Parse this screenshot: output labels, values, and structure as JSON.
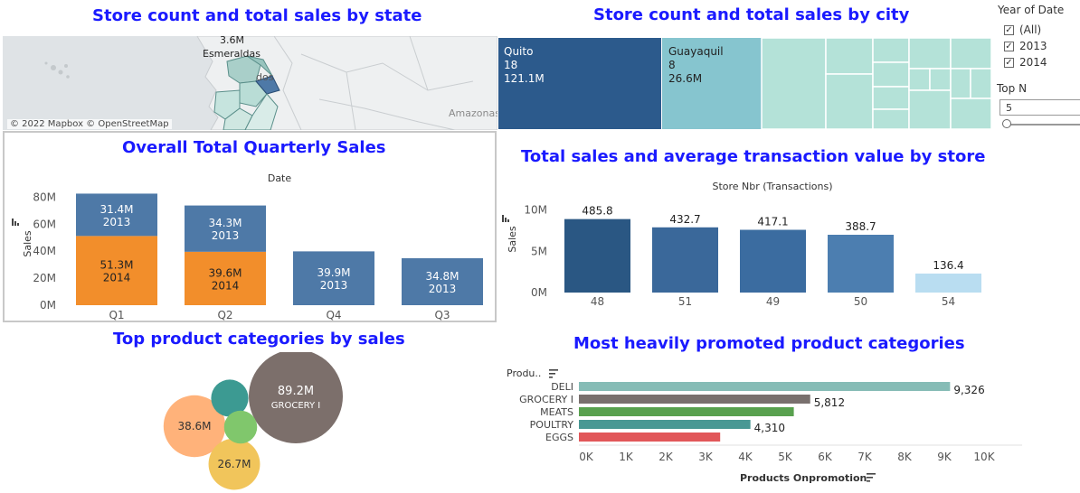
{
  "titles": {
    "state": "Store count and total sales by state",
    "city": "Store count and total sales by city",
    "quarterly": "Overall Total Quarterly Sales",
    "store": "Total sales and average transaction value by store",
    "categories": "Top product categories by sales",
    "promoted": "Most heavily promoted product categories"
  },
  "map": {
    "attribution": "© 2022 Mapbox © OpenStreetMap",
    "labels": {
      "value": "3.6M",
      "state": "Esmeraldas",
      "partial": "dos",
      "region": "Amazonas"
    }
  },
  "filters": {
    "year_title": "Year of Date",
    "year_options": [
      {
        "label": "(All)",
        "checked": true
      },
      {
        "label": "2013",
        "checked": true
      },
      {
        "label": "2014",
        "checked": true
      }
    ],
    "topn_title": "Top N",
    "topn_value": "5"
  },
  "icons": {
    "sort_icon": "sort-icon",
    "checkbox_icon": "checkbox-checked-icon"
  },
  "chart_data": [
    {
      "id": "city-treemap",
      "type": "heatmap",
      "title": "Store count and total sales by city",
      "cells": [
        {
          "city": "Quito",
          "stores": "18",
          "sales": "121.1M"
        },
        {
          "city": "Guayaquil",
          "stores": "8",
          "sales": "26.6M"
        }
      ]
    },
    {
      "id": "quarterly-sales",
      "type": "bar",
      "title": "Overall Total Quarterly Sales",
      "xlabel": "Date",
      "ylabel": "Sales",
      "categories": [
        "Q1",
        "Q2",
        "Q4",
        "Q3"
      ],
      "yticks": [
        "0M",
        "20M",
        "40M",
        "60M",
        "80M"
      ],
      "ylim": [
        0,
        85
      ],
      "series": [
        {
          "name": "2014",
          "values": [
            51.3,
            39.6,
            0,
            0
          ],
          "labels": [
            "51.3M",
            "39.6M",
            "",
            ""
          ],
          "color": "#f28e2b"
        },
        {
          "name": "2013",
          "values": [
            31.4,
            34.3,
            39.9,
            34.8
          ],
          "labels": [
            "31.4M",
            "34.3M",
            "39.9M",
            "34.8M"
          ],
          "color": "#4e79a7"
        }
      ]
    },
    {
      "id": "store-sales",
      "type": "bar",
      "title": "Total sales and average transaction value by store",
      "xlabel": "Store Nbr (Transactions)",
      "ylabel": "Sales",
      "categories": [
        "48",
        "51",
        "49",
        "50",
        "54"
      ],
      "values": [
        8.9,
        7.9,
        7.6,
        7.0,
        2.3
      ],
      "data_labels": [
        "485.8",
        "432.7",
        "417.1",
        "388.7",
        "136.4"
      ],
      "colors": [
        "#2a5783",
        "#3a689a",
        "#3b6ca0",
        "#4c7eb0",
        "#b9ddf1"
      ],
      "yticks": [
        "0M",
        "5M",
        "10M"
      ],
      "ylim": [
        0,
        10.5
      ]
    },
    {
      "id": "category-bubbles",
      "type": "scatter",
      "title": "Top product categories by sales",
      "bubbles": [
        {
          "label": "89.2M",
          "category": "GROCERY I",
          "value": 89.2,
          "color": "#7c6f6b"
        },
        {
          "label": "38.6M",
          "category": "",
          "value": 38.6,
          "color": "#ffb27a"
        },
        {
          "label": "26.7M",
          "category": "",
          "value": 26.7,
          "color": "#f1c55b"
        },
        {
          "label": "",
          "category": "",
          "value": 14,
          "color": "#3c9a92"
        },
        {
          "label": "",
          "category": "",
          "value": 11,
          "color": "#80c76c"
        }
      ]
    },
    {
      "id": "promoted-categories",
      "type": "bar",
      "title": "Most heavily promoted product categories",
      "ylabel": "Produ..",
      "xlabel": "Products Onpromotion",
      "categories": [
        "DELI",
        "GROCERY I",
        "MEATS",
        "POULTRY",
        "EGGS"
      ],
      "values": [
        9326,
        5812,
        5400,
        4310,
        3550
      ],
      "data_labels": [
        "9,326",
        "5,812",
        "",
        "4,310",
        ""
      ],
      "colors": [
        "#86bcb6",
        "#79706e",
        "#59a14f",
        "#499894",
        "#e15759"
      ],
      "xticks": [
        "0K",
        "1K",
        "2K",
        "3K",
        "4K",
        "5K",
        "6K",
        "7K",
        "8K",
        "9K",
        "10K"
      ],
      "xlim": [
        0,
        10000
      ]
    }
  ]
}
